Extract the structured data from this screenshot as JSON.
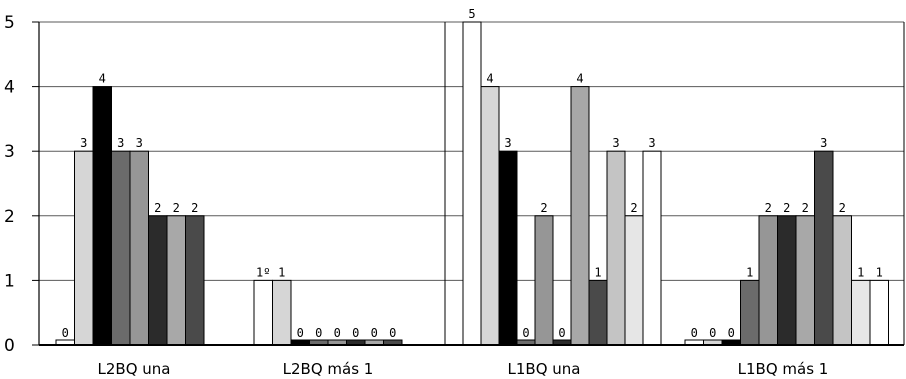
{
  "chart_data": {
    "type": "bar",
    "categories": [
      "L2BQ una",
      "L2BQ más 1",
      "L1BQ una",
      "L1BQ más 1"
    ],
    "ylim": [
      0,
      5
    ],
    "yticks": [
      "0",
      "1",
      "2",
      "3",
      "4",
      "5"
    ],
    "grid": true,
    "legend": "none",
    "series_colors": [
      "#ffffff",
      "#d6d6d6",
      "#000000",
      "#6b6b6b",
      "#969696",
      "#2b2b2b",
      "#a8a8a8",
      "#4a4a4a",
      "#c4c4c4",
      "#e6e6e6"
    ],
    "groups": [
      {
        "category": "L2BQ una",
        "values": [
          0,
          3,
          4,
          3,
          3,
          2,
          2,
          2
        ],
        "labels": [
          "0",
          "3",
          "4",
          "3",
          "3",
          "2",
          "2",
          "2"
        ]
      },
      {
        "category": "L2BQ más 1",
        "values": [
          1,
          1,
          0,
          0,
          0,
          0,
          0,
          0
        ],
        "labels": [
          "1º",
          "1",
          "0",
          "0",
          "0",
          "0",
          "0",
          "0"
        ]
      },
      {
        "category": "L1BQ una",
        "values": [
          5,
          4,
          3,
          0,
          2,
          0,
          4,
          1,
          3,
          2,
          3
        ],
        "labels": [
          "5",
          "4",
          "3",
          "0",
          "2",
          "0",
          "4",
          "1",
          "3",
          "2",
          "3"
        ]
      },
      {
        "category": "L1BQ más 1",
        "values": [
          0,
          0,
          0,
          1,
          2,
          2,
          2,
          3,
          2,
          1,
          1
        ],
        "labels": [
          "0",
          "0",
          "0",
          "1",
          "2",
          "2",
          "2",
          "3",
          "2",
          "1",
          "1"
        ]
      }
    ]
  }
}
